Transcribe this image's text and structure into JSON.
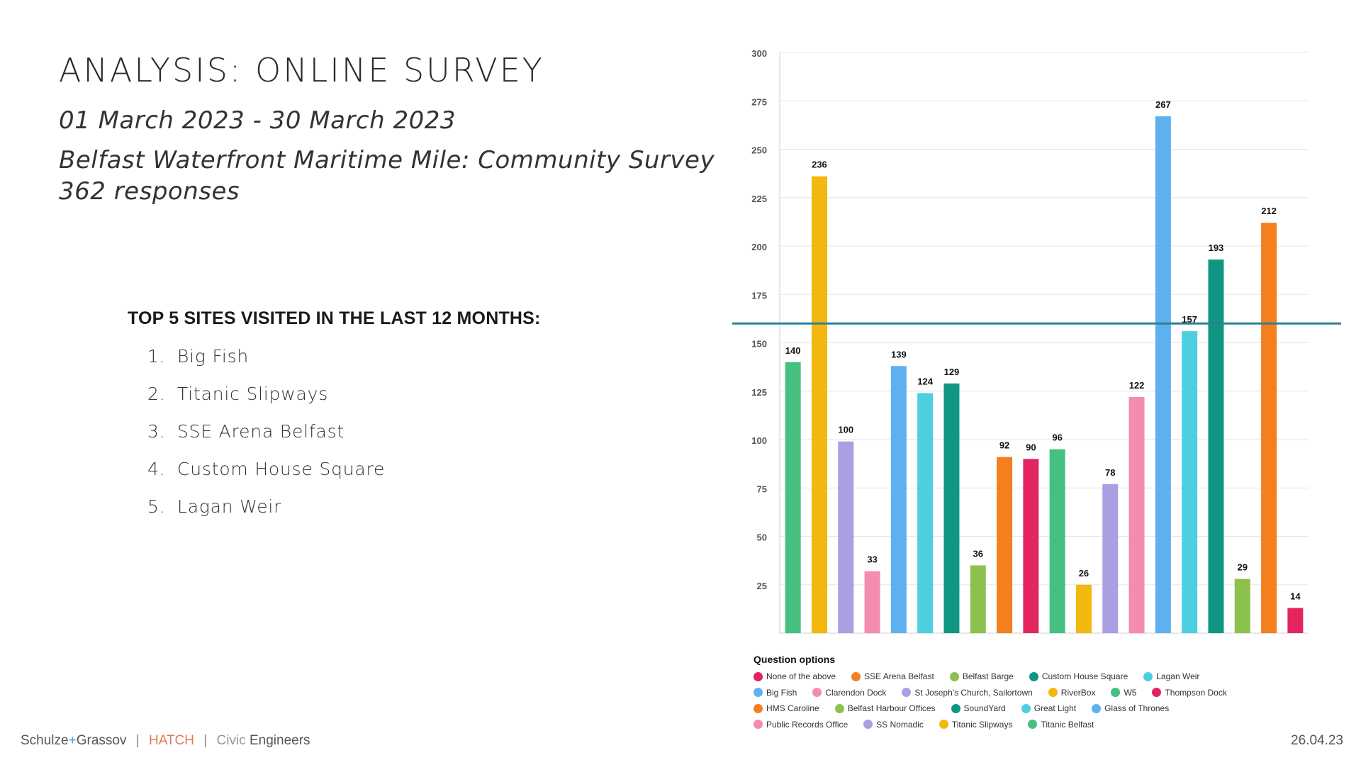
{
  "header": {
    "title": "ANALYSIS: ONLINE SURVEY",
    "date_range": "01 March 2023 - 30 March 2023",
    "survey_name": "Belfast Waterfront Maritime Mile: Community Survey",
    "responses": "362 responses"
  },
  "top_sites": {
    "heading": "TOP 5 SITES VISITED IN THE LAST 12 MONTHS:",
    "items": [
      {
        "num": "1.",
        "label": "Big Fish"
      },
      {
        "num": "2.",
        "label": "Titanic Slipways"
      },
      {
        "num": "3.",
        "label": "SSE Arena Belfast"
      },
      {
        "num": "4.",
        "label": "Custom House Square"
      },
      {
        "num": "5.",
        "label": "Lagan Weir"
      }
    ]
  },
  "footer": {
    "brand_a": "Schulze",
    "brand_plus": "+",
    "brand_b": "Grassov",
    "sep": "|",
    "hatch": "HATCH",
    "civic": "Civic",
    "engineers": "Engineers",
    "date": "26.04.23"
  },
  "chart_data": {
    "type": "bar",
    "ylim": [
      0,
      300
    ],
    "yticks": [
      25,
      50,
      75,
      100,
      125,
      150,
      175,
      200,
      225,
      250,
      275,
      300
    ],
    "grid": true,
    "legend_title": "Question options",
    "legend_position": "bottom",
    "reference_line": 160,
    "categories": [
      "Titanic Belfast",
      "Titanic Slipways",
      "SS Nomadic",
      "Public Records Office",
      "Glass of Thrones",
      "Great Light",
      "SoundYard",
      "Belfast Harbour Offices",
      "HMS Caroline",
      "Thompson Dock",
      "W5",
      "RiverBox",
      "St Joseph's Church, Sailortown",
      "Clarendon Dock",
      "Big Fish",
      "Lagan Weir",
      "Custom House Square",
      "Belfast Barge",
      "SSE Arena Belfast",
      "None of the above"
    ],
    "values": [
      140,
      236,
      100,
      33,
      139,
      124,
      129,
      36,
      92,
      90,
      96,
      26,
      78,
      122,
      267,
      157,
      193,
      29,
      212,
      14
    ],
    "bar_heights": [
      140,
      236,
      99,
      32,
      138,
      124,
      129,
      35,
      91,
      90,
      95,
      25,
      77,
      122,
      267,
      156,
      193,
      28,
      212,
      13
    ],
    "colors": [
      "#45c07e",
      "#f2b80d",
      "#ab9ee3",
      "#f48bb0",
      "#5fb0ef",
      "#4ecfdf",
      "#0f9683",
      "#8cc14e",
      "#f47f1f",
      "#e4245f",
      "#45c07e",
      "#f2b80d",
      "#ab9ee3",
      "#f48bb0",
      "#5fb0ef",
      "#4ecfdf",
      "#0f9683",
      "#8cc14e",
      "#f47f1f",
      "#e4245f"
    ],
    "legend_rows": [
      [
        {
          "label": "None of the above",
          "color": "#e4245f"
        },
        {
          "label": "SSE Arena Belfast",
          "color": "#f47f1f"
        },
        {
          "label": "Belfast Barge",
          "color": "#8cc14e"
        },
        {
          "label": "Custom House Square",
          "color": "#0f9683"
        },
        {
          "label": "Lagan Weir",
          "color": "#4ecfdf"
        }
      ],
      [
        {
          "label": "Big Fish",
          "color": "#5fb0ef"
        },
        {
          "label": "Clarendon Dock",
          "color": "#f48bb0"
        },
        {
          "label": "St Joseph's Church, Sailortown",
          "color": "#ab9ee3"
        },
        {
          "label": "RiverBox",
          "color": "#f2b80d"
        },
        {
          "label": "W5",
          "color": "#45c07e"
        },
        {
          "label": "Thompson Dock",
          "color": "#e4245f"
        }
      ],
      [
        {
          "label": "HMS Caroline",
          "color": "#f47f1f"
        },
        {
          "label": "Belfast Harbour Offices",
          "color": "#8cc14e"
        },
        {
          "label": "SoundYard",
          "color": "#0f9683"
        },
        {
          "label": "Great Light",
          "color": "#4ecfdf"
        },
        {
          "label": "Glass of Thrones",
          "color": "#5fb0ef"
        }
      ],
      [
        {
          "label": "Public Records Office",
          "color": "#f48bb0"
        },
        {
          "label": "SS Nomadic",
          "color": "#ab9ee3"
        },
        {
          "label": "Titanic Slipways",
          "color": "#f2b80d"
        },
        {
          "label": "Titanic Belfast",
          "color": "#45c07e"
        }
      ]
    ],
    "reference_color": "#2f7f96"
  }
}
